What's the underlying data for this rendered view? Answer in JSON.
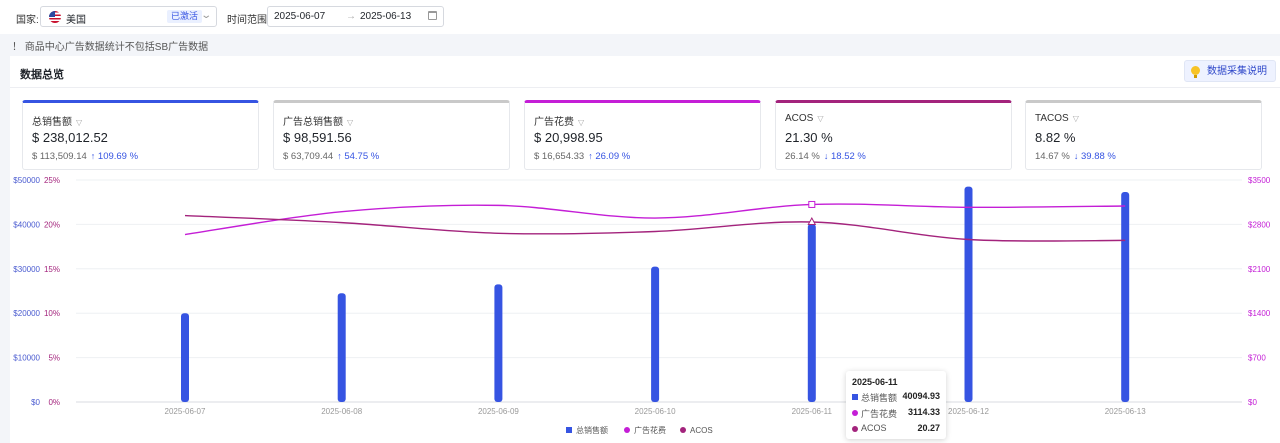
{
  "filters": {
    "country_label": "国家:",
    "country_value": "美国",
    "country_badge": "已激活",
    "range_label": "时间范围:",
    "date_start": "2025-06-07",
    "date_sep": "→",
    "date_end": "2025-06-13"
  },
  "notice": "！ 商品中心广告数据统计不包括SB广告数据",
  "panel": {
    "title": "数据总览",
    "help_label": "数据采集说明"
  },
  "cards": [
    {
      "name": "总销售额",
      "value": "$ 238,012.52",
      "prev": "$ 113,509.14",
      "change": "109.69 %",
      "dir": "↑",
      "color": "#3654e2"
    },
    {
      "name": "广告总销售额",
      "value": "$ 98,591.56",
      "prev": "$ 63,709.44",
      "change": "54.75 %",
      "dir": "↑",
      "color": "#c9c9c9"
    },
    {
      "name": "广告花费",
      "value": "$ 20,998.95",
      "prev": "$ 16,654.33",
      "change": "26.09 %",
      "dir": "↑",
      "color": "#c41ed6"
    },
    {
      "name": "ACOS",
      "value": "21.30 %",
      "prev": "26.14 %",
      "change": "18.52 %",
      "dir": "↓",
      "color": "#a3237c"
    },
    {
      "name": "TACOS",
      "value": "8.82 %",
      "prev": "14.67 %",
      "change": "39.88 %",
      "dir": "↓",
      "color": "#c9c9c9"
    }
  ],
  "chart_data": {
    "type": "bar",
    "categories": [
      "2025-06-07",
      "2025-06-08",
      "2025-06-09",
      "2025-06-10",
      "2025-06-11",
      "2025-06-12",
      "2025-06-13"
    ],
    "series": [
      {
        "name": "总销售额",
        "type": "bar",
        "axis": "left-sales",
        "color": "#3654e2",
        "values": [
          20000,
          24500,
          26500,
          30500,
          40094.93,
          48500,
          47300
        ]
      },
      {
        "name": "广告花费",
        "type": "line",
        "axis": "right",
        "color": "#c41ed6",
        "values": [
          2640,
          3000,
          3100,
          2900,
          3114.33,
          3070,
          3090
        ]
      },
      {
        "name": "ACOS",
        "type": "line",
        "axis": "left-percent",
        "color": "#a3237c",
        "values": [
          21,
          20.2,
          19,
          19.2,
          20.27,
          18.3,
          18.2
        ]
      }
    ],
    "y_left_sales_ticks": [
      "$0",
      "$10000",
      "$20000",
      "$30000",
      "$40000",
      "$50000"
    ],
    "y_left_percent_ticks": [
      "0%",
      "5%",
      "10%",
      "15%",
      "20%",
      "25%"
    ],
    "y_right_ticks": [
      "$0",
      "$700",
      "$1400",
      "$2100",
      "$2800",
      "$3500"
    ],
    "ylim_sales": [
      0,
      50000
    ],
    "ylim_percent": [
      0,
      25
    ],
    "ylim_right": [
      0,
      3500
    ],
    "legend": [
      "总销售额",
      "广告花费",
      "ACOS"
    ],
    "legend_position": "bottom-center",
    "grid": true,
    "tooltip": {
      "date": "2025-06-11",
      "rows": [
        {
          "name": "总销售额",
          "value": "40094.93",
          "color": "#3654e2"
        },
        {
          "name": "广告花费",
          "value": "3114.33",
          "color": "#c41ed6"
        },
        {
          "name": "ACOS",
          "value": "20.27",
          "color": "#a3237c"
        }
      ]
    }
  }
}
